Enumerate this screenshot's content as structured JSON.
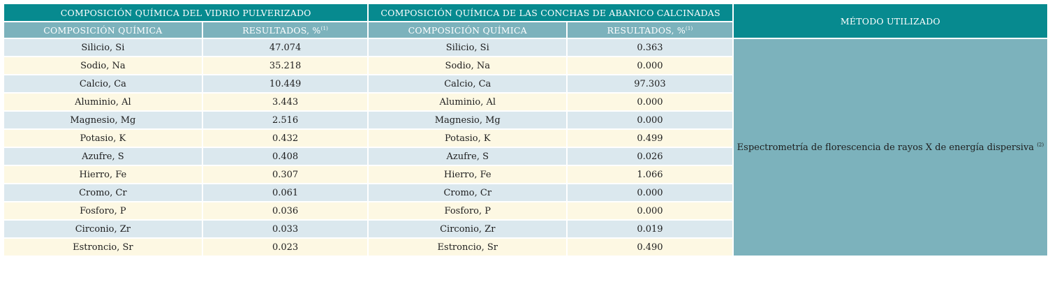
{
  "table": {
    "glass_header": "COMPOSICIÓN QUÍMICA DEL VIDRIO PULVERIZADO",
    "shell_header": "COMPOSICIÓN QUÍMICA DE LAS CONCHAS DE ABANICO CALCINADAS",
    "method_header": "MÉTODO UTILIZADO",
    "col_composition": "COMPOSICIÓN QUÍMICA",
    "col_results": "RESULTADOS, %",
    "col_results_note": "(1)",
    "method_value": "Espectrometría de florescencia de rayos X de energía dispersiva ",
    "method_note": "(2)",
    "rows": [
      {
        "glass_element": "Silicio, Si",
        "glass_value": "47.074",
        "shell_element": "Silicio, Si",
        "shell_value": "0.363"
      },
      {
        "glass_element": "Sodio, Na",
        "glass_value": "35.218",
        "shell_element": "Sodio, Na",
        "shell_value": "0.000"
      },
      {
        "glass_element": "Calcio, Ca",
        "glass_value": "10.449",
        "shell_element": "Calcio, Ca",
        "shell_value": "97.303"
      },
      {
        "glass_element": "Aluminio, Al",
        "glass_value": "3.443",
        "shell_element": "Aluminio, Al",
        "shell_value": "0.000"
      },
      {
        "glass_element": "Magnesio, Mg",
        "glass_value": "2.516",
        "shell_element": "Magnesio, Mg",
        "shell_value": "0.000"
      },
      {
        "glass_element": "Potasio, K",
        "glass_value": "0.432",
        "shell_element": "Potasio, K",
        "shell_value": "0.499"
      },
      {
        "glass_element": "Azufre, S",
        "glass_value": "0.408",
        "shell_element": "Azufre, S",
        "shell_value": "0.026"
      },
      {
        "glass_element": "Hierro, Fe",
        "glass_value": "0.307",
        "shell_element": "Hierro, Fe",
        "shell_value": "1.066"
      },
      {
        "glass_element": "Cromo, Cr",
        "glass_value": "0.061",
        "shell_element": "Cromo, Cr",
        "shell_value": "0.000"
      },
      {
        "glass_element": "Fosforo, P",
        "glass_value": "0.036",
        "shell_element": "Fosforo, P",
        "shell_value": "0.000"
      },
      {
        "glass_element": "Circonio, Zr",
        "glass_value": "0.033",
        "shell_element": "Circonio, Zr",
        "shell_value": "0.019"
      },
      {
        "glass_element": "Estroncio, Sr",
        "glass_value": "0.023",
        "shell_element": "Estroncio, Sr",
        "shell_value": "0.490"
      }
    ]
  }
}
